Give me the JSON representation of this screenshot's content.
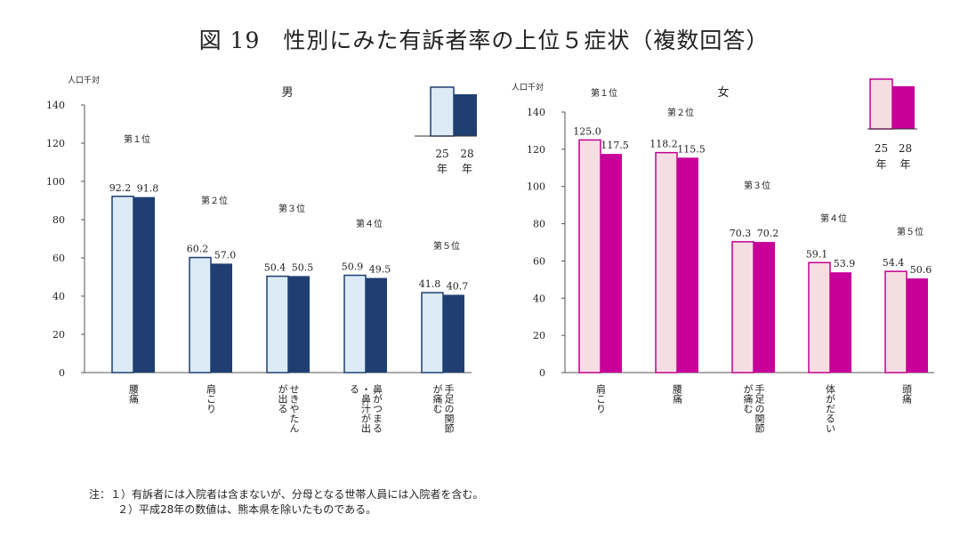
{
  "title": "図 19　性別にみた有訴者率の上位５症状（複数回答）",
  "chart_data": [
    {
      "type": "bar",
      "panel_label": "男",
      "unit_label": "人口千対",
      "ylim": [
        0,
        140
      ],
      "yticks": [
        0,
        20,
        40,
        60,
        80,
        100,
        120,
        140
      ],
      "rank_labels": [
        "第１位",
        "第２位",
        "第３位",
        "第４位",
        "第５位"
      ],
      "categories": [
        "腰痛",
        "肩こり",
        "せきやたんが出る",
        "鼻がつまる・鼻汁が出る",
        "手足の関節が痛む"
      ],
      "series": [
        {
          "name": "25年",
          "values": [
            92.2,
            60.2,
            50.4,
            50.9,
            41.8
          ]
        },
        {
          "name": "28年",
          "values": [
            91.8,
            57.0,
            50.5,
            49.5,
            40.7
          ]
        }
      ],
      "legend_years": [
        "25",
        "28"
      ],
      "legend_unit": "年",
      "colors": {
        "series_a_fill": "#dcebf5",
        "series_a_stroke": "#1f3f73",
        "series_b_fill": "#1f3f73"
      }
    },
    {
      "type": "bar",
      "panel_label": "女",
      "unit_label": "人口千対",
      "ylim": [
        0,
        140
      ],
      "yticks": [
        0,
        20,
        40,
        60,
        80,
        100,
        120,
        140
      ],
      "rank_labels": [
        "第１位",
        "第２位",
        "第３位",
        "第４位",
        "第５位"
      ],
      "categories": [
        "肩こり",
        "腰痛",
        "手足の関節が痛む",
        "体がだるい",
        "頭痛"
      ],
      "series": [
        {
          "name": "25年",
          "values": [
            125.0,
            118.2,
            70.3,
            59.1,
            54.4
          ]
        },
        {
          "name": "28年",
          "values": [
            117.5,
            115.5,
            70.2,
            53.9,
            50.6
          ]
        }
      ],
      "legend_years": [
        "25",
        "28"
      ],
      "legend_unit": "年",
      "colors": {
        "series_a_fill": "#f6dde2",
        "series_a_stroke": "#c0008f",
        "series_b_fill": "#c8009a"
      }
    }
  ],
  "notes": [
    "注：１）有訴者には入院者は含まないが、分母となる世帯人員には入院者を含む。",
    "２）平成28年の数値は、熊本県を除いたものである。"
  ]
}
